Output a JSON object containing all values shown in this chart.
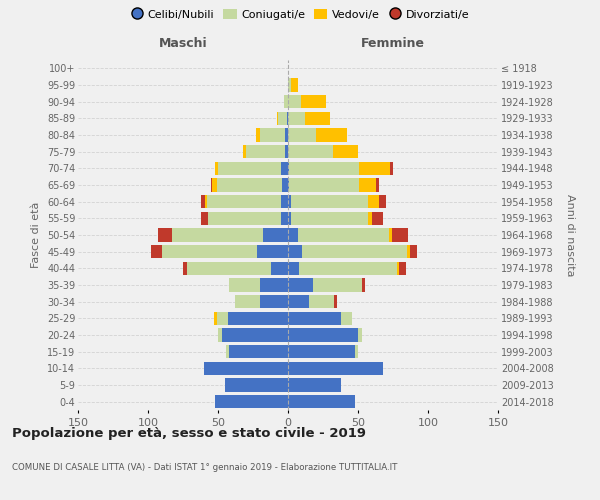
{
  "age_groups": [
    "0-4",
    "5-9",
    "10-14",
    "15-19",
    "20-24",
    "25-29",
    "30-34",
    "35-39",
    "40-44",
    "45-49",
    "50-54",
    "55-59",
    "60-64",
    "65-69",
    "70-74",
    "75-79",
    "80-84",
    "85-89",
    "90-94",
    "95-99",
    "100+"
  ],
  "birth_years": [
    "2014-2018",
    "2009-2013",
    "2004-2008",
    "1999-2003",
    "1994-1998",
    "1989-1993",
    "1984-1988",
    "1979-1983",
    "1974-1978",
    "1969-1973",
    "1964-1968",
    "1959-1963",
    "1954-1958",
    "1949-1953",
    "1944-1948",
    "1939-1943",
    "1934-1938",
    "1929-1933",
    "1924-1928",
    "1919-1923",
    "≤ 1918"
  ],
  "maschi": {
    "celibi": [
      52,
      45,
      60,
      42,
      47,
      43,
      20,
      20,
      12,
      22,
      18,
      5,
      5,
      4,
      5,
      2,
      2,
      1,
      0,
      0,
      0
    ],
    "coniugati": [
      0,
      0,
      0,
      2,
      3,
      8,
      18,
      22,
      60,
      68,
      65,
      52,
      53,
      47,
      45,
      28,
      18,
      6,
      3,
      0,
      0
    ],
    "vedovi": [
      0,
      0,
      0,
      0,
      0,
      2,
      0,
      0,
      0,
      0,
      0,
      0,
      1,
      3,
      2,
      2,
      3,
      1,
      0,
      0,
      0
    ],
    "divorziati": [
      0,
      0,
      0,
      0,
      0,
      0,
      0,
      0,
      3,
      8,
      10,
      5,
      3,
      1,
      0,
      0,
      0,
      0,
      0,
      0,
      0
    ]
  },
  "femmine": {
    "nubili": [
      48,
      38,
      68,
      48,
      50,
      38,
      15,
      18,
      8,
      10,
      7,
      2,
      2,
      1,
      1,
      0,
      0,
      0,
      0,
      0,
      0
    ],
    "coniugate": [
      0,
      0,
      0,
      2,
      3,
      8,
      18,
      35,
      70,
      75,
      65,
      55,
      55,
      50,
      50,
      32,
      20,
      12,
      9,
      2,
      0
    ],
    "vedove": [
      0,
      0,
      0,
      0,
      0,
      0,
      0,
      0,
      1,
      2,
      2,
      3,
      8,
      12,
      22,
      18,
      22,
      18,
      18,
      5,
      0
    ],
    "divorziate": [
      0,
      0,
      0,
      0,
      0,
      0,
      2,
      2,
      5,
      5,
      12,
      8,
      5,
      2,
      2,
      0,
      0,
      0,
      0,
      0,
      0
    ]
  },
  "colors": {
    "celibi_nubili": "#4472c4",
    "coniugati": "#c5d9a0",
    "vedovi": "#ffc000",
    "divorziati": "#c0392b"
  },
  "xlim": 150,
  "title": "Popolazione per età, sesso e stato civile - 2019",
  "subtitle": "COMUNE DI CASALE LITTA (VA) - Dati ISTAT 1° gennaio 2019 - Elaborazione TUTTITALIA.IT",
  "ylabel_left": "Fasce di età",
  "ylabel_right": "Anni di nascita",
  "xlabel_left": "Maschi",
  "xlabel_right": "Femmine",
  "background_color": "#f0f0f0",
  "grid_color": "#cccccc"
}
